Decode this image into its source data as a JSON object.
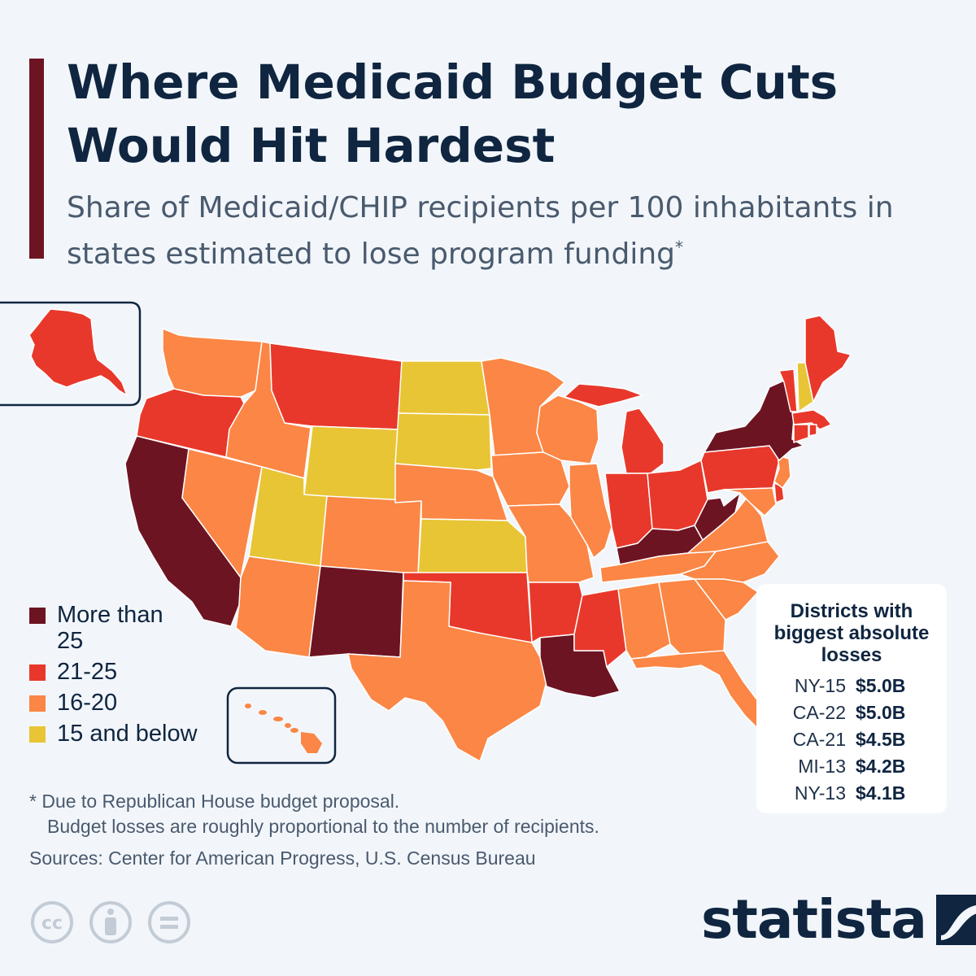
{
  "title": "Where Medicaid Budget Cuts Would Hit Hardest",
  "subtitle": "Share of Medicaid/CHIP recipients per 100 inhabitants in states estimated to lose program funding",
  "subtitle_marker": "*",
  "colors": {
    "more_than_25": "#6d1423",
    "21_25": "#e8382b",
    "16_20": "#fb8645",
    "15_below": "#e8c535",
    "accent": "#6d1423",
    "text_dark": "#0f2540",
    "text_grey": "#4a5a6e"
  },
  "legend": [
    {
      "label": "More than 25",
      "category": "more_than_25"
    },
    {
      "label": "21-25",
      "category": "21_25"
    },
    {
      "label": "16-20",
      "category": "16_20"
    },
    {
      "label": "15 and below",
      "category": "15_below"
    }
  ],
  "districts": {
    "title": "Districts with biggest absolute losses",
    "rows": [
      {
        "district": "NY-15",
        "loss": "$5.0B"
      },
      {
        "district": "CA-22",
        "loss": "$5.0B"
      },
      {
        "district": "CA-21",
        "loss": "$4.5B"
      },
      {
        "district": "MI-13",
        "loss": "$4.2B"
      },
      {
        "district": "NY-13",
        "loss": "$4.1B"
      }
    ]
  },
  "footnote": {
    "line1": "* Due to Republican House budget proposal.",
    "line2": "Budget losses are roughly proportional to the number of recipients."
  },
  "sources": "Sources: Center for American Progress, U.S. Census Bureau",
  "brand": "statista",
  "icons": [
    "cc-icon",
    "attribution-icon",
    "no-derivatives-icon",
    "statista-logo-icon"
  ]
}
